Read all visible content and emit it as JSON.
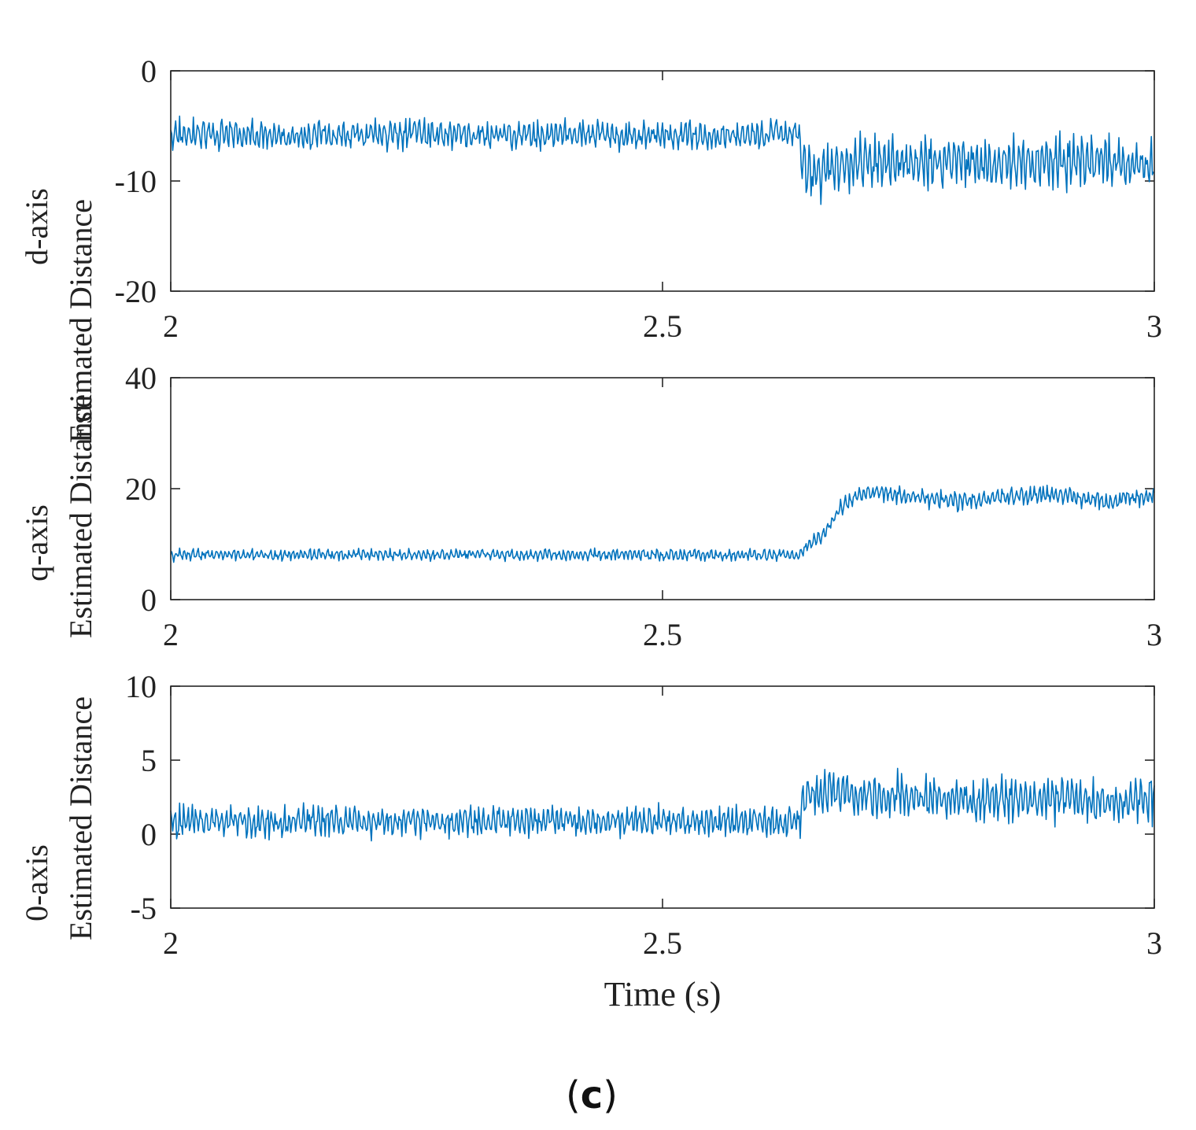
{
  "chart_data": [
    {
      "type": "line",
      "title": "",
      "ylabel_line1": "d-axis",
      "ylabel_line2": "Estimated Distance",
      "xlabel": "",
      "xlim": [
        2,
        3
      ],
      "ylim": [
        -20,
        0
      ],
      "xticks": [
        2,
        2.5,
        3
      ],
      "xtick_labels": [
        "2",
        "2.5",
        "3"
      ],
      "yticks": [
        0,
        -10,
        -20
      ],
      "ytick_labels": [
        "0",
        "-10",
        "-20"
      ],
      "series": [
        {
          "name": "d-axis estimated distance",
          "color": "#0072BD",
          "x": [
            2.0,
            2.05,
            2.1,
            2.15,
            2.2,
            2.25,
            2.3,
            2.35,
            2.4,
            2.45,
            2.5,
            2.55,
            2.6,
            2.64,
            2.641,
            2.66,
            2.68,
            2.7,
            2.75,
            2.8,
            2.85,
            2.9,
            2.95,
            3.0
          ],
          "values": [
            -5.8,
            -5.7,
            -5.9,
            -5.8,
            -5.9,
            -5.7,
            -5.8,
            -5.9,
            -5.7,
            -5.8,
            -5.8,
            -5.9,
            -5.8,
            -5.6,
            -8.5,
            -9.0,
            -8.8,
            -8.3,
            -8.5,
            -8.2,
            -8.4,
            -8.3,
            -8.2,
            -8.6
          ],
          "noise_amplitude": [
            1.6,
            1.6,
            1.6,
            1.6,
            1.6,
            1.6,
            1.6,
            1.6,
            1.6,
            1.6,
            1.6,
            1.6,
            1.6,
            1.6,
            3.0,
            3.0,
            2.8,
            2.8,
            2.8,
            2.8,
            2.8,
            2.8,
            2.8,
            2.8
          ]
        }
      ]
    },
    {
      "type": "line",
      "title": "",
      "ylabel_line1": "q-axis",
      "ylabel_line2": "Estimated Distance",
      "xlabel": "",
      "xlim": [
        2,
        3
      ],
      "ylim": [
        0,
        40
      ],
      "xticks": [
        2,
        2.5,
        3
      ],
      "xtick_labels": [
        "2",
        "2.5",
        "3"
      ],
      "yticks": [
        40,
        20,
        0
      ],
      "ytick_labels": [
        "40",
        "20",
        "0"
      ],
      "series": [
        {
          "name": "q-axis estimated distance",
          "color": "#0072BD",
          "x": [
            2.0,
            2.05,
            2.1,
            2.15,
            2.2,
            2.25,
            2.3,
            2.35,
            2.4,
            2.45,
            2.5,
            2.55,
            2.6,
            2.64,
            2.645,
            2.66,
            2.67,
            2.68,
            2.7,
            2.72,
            2.75,
            2.8,
            2.85,
            2.9,
            2.95,
            3.0
          ],
          "values": [
            8.0,
            8.1,
            8.0,
            8.2,
            8.1,
            8.0,
            8.2,
            8.1,
            8.0,
            8.2,
            8.1,
            8.0,
            8.1,
            8.0,
            9.5,
            11.0,
            13.5,
            16.5,
            19.0,
            19.5,
            18.5,
            17.8,
            18.5,
            19.0,
            17.8,
            18.8
          ],
          "noise_amplitude": [
            1.2,
            1.2,
            1.2,
            1.2,
            1.2,
            1.2,
            1.2,
            1.2,
            1.2,
            1.2,
            1.2,
            1.2,
            1.2,
            1.2,
            1.6,
            1.6,
            1.6,
            1.8,
            1.8,
            1.8,
            2.0,
            2.0,
            2.0,
            2.0,
            2.0,
            2.0
          ]
        }
      ]
    },
    {
      "type": "line",
      "title": "",
      "ylabel_line1": "0-axis",
      "ylabel_line2": "Estimated Distance",
      "xlabel": "Time (s)",
      "xlim": [
        2,
        3
      ],
      "ylim": [
        -5,
        10
      ],
      "xticks": [
        2,
        2.5,
        3
      ],
      "xtick_labels": [
        "2",
        "2.5",
        "3"
      ],
      "yticks": [
        10,
        5,
        0,
        -5
      ],
      "ytick_labels": [
        "10",
        "5",
        "0",
        "-5"
      ],
      "series": [
        {
          "name": "0-axis estimated distance",
          "color": "#0072BD",
          "x": [
            2.0,
            2.05,
            2.1,
            2.15,
            2.2,
            2.25,
            2.3,
            2.35,
            2.4,
            2.45,
            2.5,
            2.55,
            2.6,
            2.64,
            2.641,
            2.66,
            2.68,
            2.7,
            2.75,
            2.8,
            2.85,
            2.9,
            2.95,
            3.0
          ],
          "values": [
            0.8,
            0.9,
            0.8,
            0.9,
            0.8,
            0.9,
            0.8,
            0.9,
            0.9,
            0.8,
            0.9,
            0.8,
            0.9,
            0.8,
            2.5,
            2.8,
            2.8,
            2.7,
            2.5,
            2.3,
            2.4,
            2.3,
            2.2,
            2.4
          ],
          "noise_amplitude": [
            1.2,
            1.2,
            1.2,
            1.2,
            1.2,
            1.2,
            1.2,
            1.2,
            1.2,
            1.2,
            1.2,
            1.2,
            1.2,
            1.2,
            1.8,
            1.8,
            1.8,
            1.8,
            1.8,
            1.8,
            1.8,
            1.8,
            1.8,
            1.8
          ]
        }
      ]
    }
  ],
  "figure_label": {
    "open": "(",
    "letter": "c",
    "close": ")"
  }
}
